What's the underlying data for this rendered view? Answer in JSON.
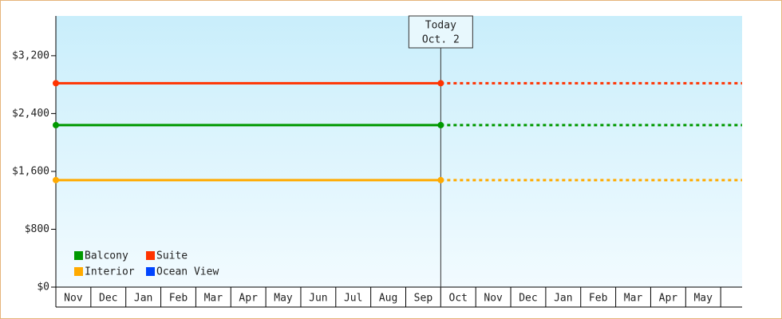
{
  "chart_data": {
    "type": "line",
    "categories": [
      "Nov",
      "Dec",
      "Jan",
      "Feb",
      "Mar",
      "Apr",
      "May",
      "Jun",
      "Jul",
      "Aug",
      "Sep",
      "Oct",
      "Nov",
      "Dec",
      "Jan",
      "Feb",
      "Mar",
      "Apr",
      "May"
    ],
    "series": [
      {
        "name": "Balcony",
        "color": "#009900",
        "values": [
          2240,
          2240,
          2240,
          2240,
          2240,
          2240,
          2240,
          2240,
          2240,
          2240,
          2240,
          2240,
          2240,
          2240,
          2240,
          2240,
          2240,
          2240,
          2240
        ]
      },
      {
        "name": "Suite",
        "color": "#ff3300",
        "values": [
          2820,
          2820,
          2820,
          2820,
          2820,
          2820,
          2820,
          2820,
          2820,
          2820,
          2820,
          2820,
          2820,
          2820,
          2820,
          2820,
          2820,
          2820,
          2820
        ]
      },
      {
        "name": "Interior",
        "color": "#ffaa00",
        "values": [
          1480,
          1480,
          1480,
          1480,
          1480,
          1480,
          1480,
          1480,
          1480,
          1480,
          1480,
          1480,
          1480,
          1480,
          1480,
          1480,
          1480,
          1480,
          1480
        ]
      },
      {
        "name": "Ocean View",
        "color": "#0044ff",
        "values": [
          null,
          null,
          null,
          null,
          null,
          null,
          null,
          null,
          null,
          null,
          null,
          null,
          null,
          null,
          null,
          null,
          null,
          null,
          null
        ]
      }
    ],
    "annotation": {
      "lines": [
        "Today",
        "Oct. 2"
      ],
      "category_index": 11
    },
    "ylim": [
      0,
      3750
    ],
    "yticks": [
      {
        "value": 0,
        "label": "$0"
      },
      {
        "value": 800,
        "label": "$800"
      },
      {
        "value": 1600,
        "label": "$1,600"
      },
      {
        "value": 2400,
        "label": "$2,400"
      },
      {
        "value": 3200,
        "label": "$3,200"
      }
    ],
    "legend": "bottom-left"
  }
}
